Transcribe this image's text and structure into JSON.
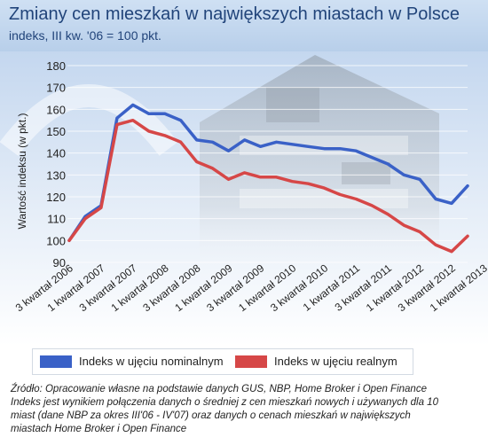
{
  "title": "Zmiany cen mieszkań w największych miastach w Polsce",
  "subtitle": "indeks, III kw. '06 = 100 pkt.",
  "colors": {
    "nominal": "#3a61c7",
    "real": "#d64747",
    "header_bg": "#c4d7ef",
    "title_text": "#21447a"
  },
  "chart_data": {
    "type": "line",
    "title": "Zmiany cen mieszkań w największych miastach w Polsce",
    "subtitle": "indeks, III kw. '06 = 100 pkt.",
    "xlabel": "",
    "ylabel": "Wartość indeksu (w pkt.)",
    "ylim": [
      90,
      180
    ],
    "yticks": [
      90,
      100,
      110,
      120,
      130,
      140,
      150,
      160,
      170,
      180
    ],
    "grid": true,
    "legend": "bottom",
    "x_tick_labels": [
      "3 kwartał 2006",
      "1 kwartał 2007",
      "3 kwartał 2007",
      "1 kwartał 2008",
      "3 kwartał 2008",
      "1 kwartał 2009",
      "3 kwartał 2009",
      "1 kwartał 2010",
      "3 kwartał 2010",
      "1 kwartał 2011",
      "3 kwartał 2011",
      "1 kwartał 2012",
      "3 kwartał 2012",
      "1 kwartał 2013"
    ],
    "series": [
      {
        "name": "Indeks w ujęciu nominalnym",
        "color": "#3a61c7",
        "values": [
          100,
          111,
          116,
          156,
          162,
          158,
          158,
          155,
          146,
          145,
          141,
          146,
          143,
          145,
          144,
          143,
          142,
          142,
          141,
          138,
          135,
          130,
          128,
          119,
          117,
          125
        ]
      },
      {
        "name": "Indeks w ujęciu realnym",
        "color": "#d64747",
        "values": [
          100,
          110,
          115,
          153,
          155,
          150,
          148,
          145,
          136,
          133,
          128,
          131,
          129,
          129,
          127,
          126,
          124,
          121,
          119,
          116,
          112,
          107,
          104,
          98,
          95,
          102
        ]
      }
    ]
  },
  "legend": {
    "nominal_label": "Indeks w ujęciu nominalnym",
    "real_label": "Indeks w ujęciu realnym"
  },
  "source": {
    "line1": "Źródło: Opracowanie własne na podstawie danych GUS, NBP, Home Broker i Open Finance",
    "line2": "Indeks jest wynikiem połączenia danych o średniej z cen mieszkań nowych i używanych dla 10",
    "line3": "miast (dane NBP za okres III'06 - IV'07) oraz danych o cenach mieszkań w największych",
    "line4": "miastach Home Broker i Open Finance"
  }
}
